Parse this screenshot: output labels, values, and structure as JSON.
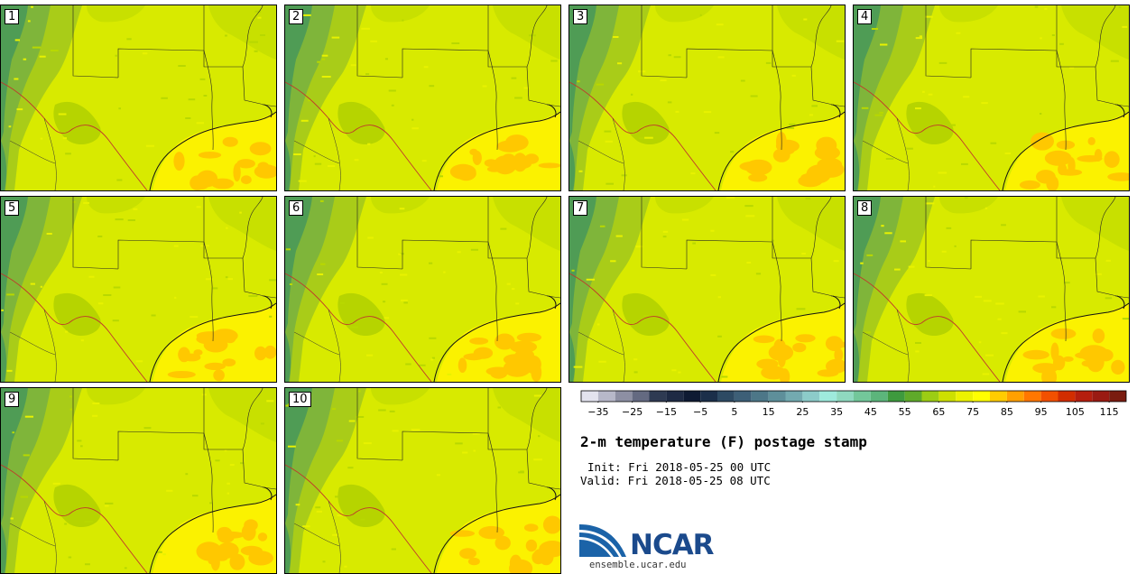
{
  "panels": [
    {
      "label": "1"
    },
    {
      "label": "2"
    },
    {
      "label": "3"
    },
    {
      "label": "4"
    },
    {
      "label": "5"
    },
    {
      "label": "6"
    },
    {
      "label": "7"
    },
    {
      "label": "8"
    },
    {
      "label": "9"
    },
    {
      "label": "10"
    }
  ],
  "colorbar": {
    "colors": [
      "#e3e3ee",
      "#b7b8c9",
      "#8d8fa3",
      "#646a81",
      "#2e3a52",
      "#1e2a44",
      "#0e1a33",
      "#1b2f4a",
      "#2d4a63",
      "#3d5f77",
      "#4d7788",
      "#5e8f9a",
      "#73aab0",
      "#8ccbc9",
      "#9eeadc",
      "#8fd9bf",
      "#73c79a",
      "#5cb57b",
      "#3e9a3e",
      "#5faa2a",
      "#9ccd14",
      "#cde000",
      "#ecf200",
      "#ffff00",
      "#ffcc00",
      "#ffa000",
      "#ff7700",
      "#f25000",
      "#d22d00",
      "#b51e0e",
      "#9a1a12",
      "#7a1c10"
    ],
    "tick_labels": [
      "−35",
      "−25",
      "−15",
      "−5",
      "5",
      "15",
      "25",
      "35",
      "45",
      "55",
      "65",
      "75",
      "85",
      "95",
      "105",
      "115"
    ],
    "min": -40,
    "max": 120
  },
  "title": "2-m temperature (F) postage stamp",
  "init": "Init: Fri 2018-05-25 00 UTC",
  "valid": "Valid: Fri 2018-05-25 08 UTC",
  "logo_text": "NCAR",
  "site": "ensemble.ucar.edu"
}
